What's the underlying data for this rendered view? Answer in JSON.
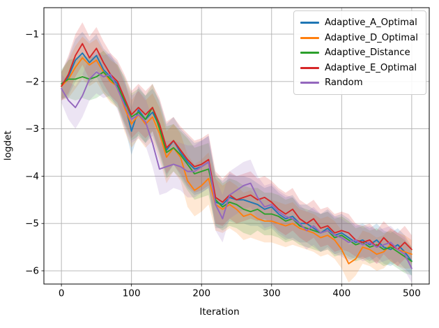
{
  "figure": {
    "background": "#ffffff"
  },
  "chart_data": {
    "type": "line",
    "title": "",
    "xlabel": "Iteration",
    "ylabel": "logdet",
    "grid": true,
    "legend_position": "upper right",
    "xlim": [
      -25,
      525
    ],
    "ylim": [
      -6.28,
      -0.44
    ],
    "xticks": [
      0,
      100,
      200,
      300,
      400,
      500
    ],
    "xtick_labels": [
      "0",
      "100",
      "200",
      "300",
      "400",
      "500"
    ],
    "yticks": [
      -1,
      -2,
      -3,
      -4,
      -5,
      -6
    ],
    "ytick_labels": [
      "−1",
      "−2",
      "−3",
      "−4",
      "−5",
      "−6"
    ],
    "band_alpha": 0.18,
    "x": [
      0,
      10,
      20,
      30,
      40,
      50,
      60,
      70,
      80,
      90,
      100,
      110,
      120,
      130,
      140,
      150,
      160,
      170,
      180,
      190,
      200,
      210,
      220,
      230,
      240,
      250,
      260,
      270,
      280,
      290,
      300,
      310,
      320,
      330,
      340,
      350,
      360,
      370,
      380,
      390,
      400,
      410,
      420,
      430,
      440,
      450,
      460,
      470,
      480,
      490,
      500
    ],
    "band_halfwidth": [
      0.3,
      0.4,
      0.45,
      0.45,
      0.45,
      0.45,
      0.45,
      0.45,
      0.45,
      0.5,
      0.5,
      0.5,
      0.5,
      0.5,
      0.55,
      0.55,
      0.5,
      0.5,
      0.55,
      0.55,
      0.55,
      0.55,
      0.55,
      0.5,
      0.5,
      0.5,
      0.5,
      0.5,
      0.45,
      0.45,
      0.45,
      0.45,
      0.45,
      0.45,
      0.4,
      0.4,
      0.4,
      0.4,
      0.4,
      0.4,
      0.4,
      0.4,
      0.35,
      0.35,
      0.35,
      0.35,
      0.35,
      0.35,
      0.35,
      0.35,
      0.3
    ],
    "series": [
      {
        "name": "Adaptive_A_Optimal",
        "color": "#1f77b4",
        "values": [
          -2.1,
          -1.9,
          -1.55,
          -1.4,
          -1.6,
          -1.45,
          -1.75,
          -1.9,
          -2.05,
          -2.45,
          -3.05,
          -2.6,
          -2.8,
          -2.65,
          -2.95,
          -3.45,
          -3.25,
          -3.5,
          -3.7,
          -3.85,
          -3.8,
          -3.7,
          -4.55,
          -4.6,
          -4.45,
          -4.5,
          -4.5,
          -4.55,
          -4.6,
          -4.7,
          -4.65,
          -4.8,
          -4.9,
          -4.85,
          -5.0,
          -5.0,
          -5.1,
          -5.2,
          -5.1,
          -5.25,
          -5.2,
          -5.3,
          -5.4,
          -5.35,
          -5.45,
          -5.35,
          -5.5,
          -5.55,
          -5.45,
          -5.6,
          -5.8
        ]
      },
      {
        "name": "Adaptive_D_Optimal",
        "color": "#ff7f0e",
        "values": [
          -2.1,
          -1.95,
          -1.7,
          -1.5,
          -1.65,
          -1.55,
          -1.8,
          -2.0,
          -2.1,
          -2.55,
          -2.9,
          -2.7,
          -2.9,
          -2.75,
          -3.1,
          -3.6,
          -3.4,
          -3.6,
          -4.1,
          -4.3,
          -4.2,
          -4.05,
          -4.6,
          -4.7,
          -4.6,
          -4.7,
          -4.85,
          -4.8,
          -4.9,
          -4.95,
          -4.95,
          -5.0,
          -5.05,
          -5.0,
          -5.1,
          -5.15,
          -5.2,
          -5.3,
          -5.25,
          -5.35,
          -5.55,
          -5.85,
          -5.75,
          -5.5,
          -5.55,
          -5.65,
          -5.6,
          -5.45,
          -5.55,
          -5.6,
          -5.65
        ]
      },
      {
        "name": "Adaptive_Distance",
        "color": "#2ca02c",
        "values": [
          -2.05,
          -1.95,
          -1.95,
          -1.9,
          -1.95,
          -1.9,
          -1.8,
          -1.95,
          -2.1,
          -2.4,
          -2.75,
          -2.65,
          -2.8,
          -2.55,
          -3.0,
          -3.5,
          -3.4,
          -3.55,
          -3.75,
          -3.95,
          -3.9,
          -3.85,
          -4.5,
          -4.65,
          -4.55,
          -4.6,
          -4.7,
          -4.75,
          -4.7,
          -4.8,
          -4.8,
          -4.85,
          -4.95,
          -4.9,
          -5.05,
          -5.1,
          -5.15,
          -5.2,
          -5.15,
          -5.3,
          -5.25,
          -5.35,
          -5.45,
          -5.4,
          -5.5,
          -5.45,
          -5.55,
          -5.5,
          -5.6,
          -5.7,
          -5.8
        ]
      },
      {
        "name": "Adaptive_E_Optimal",
        "color": "#d62728",
        "values": [
          -2.1,
          -1.85,
          -1.45,
          -1.2,
          -1.5,
          -1.3,
          -1.6,
          -1.85,
          -2.0,
          -2.35,
          -2.7,
          -2.55,
          -2.7,
          -2.55,
          -2.9,
          -3.4,
          -3.25,
          -3.45,
          -3.65,
          -3.8,
          -3.75,
          -3.65,
          -4.45,
          -4.55,
          -4.4,
          -4.5,
          -4.45,
          -4.4,
          -4.5,
          -4.45,
          -4.55,
          -4.7,
          -4.8,
          -4.7,
          -4.9,
          -5.0,
          -4.9,
          -5.1,
          -5.05,
          -5.2,
          -5.15,
          -5.2,
          -5.35,
          -5.4,
          -5.35,
          -5.5,
          -5.3,
          -5.45,
          -5.55,
          -5.4,
          -5.55
        ]
      },
      {
        "name": "Random",
        "color": "#9467bd",
        "values": [
          -2.15,
          -2.4,
          -2.55,
          -2.3,
          -1.95,
          -1.8,
          -1.9,
          -1.85,
          -2.15,
          -2.5,
          -2.8,
          -2.7,
          -2.85,
          -3.3,
          -3.85,
          -3.8,
          -3.75,
          -3.8,
          -3.9,
          -3.9,
          -3.8,
          -3.7,
          -4.6,
          -4.9,
          -4.4,
          -4.3,
          -4.2,
          -4.15,
          -4.45,
          -4.65,
          -4.6,
          -4.75,
          -4.85,
          -4.9,
          -5.0,
          -5.15,
          -5.05,
          -5.2,
          -5.15,
          -5.25,
          -5.3,
          -5.4,
          -5.35,
          -5.45,
          -5.4,
          -5.5,
          -5.45,
          -5.4,
          -5.55,
          -5.65,
          -5.95
        ]
      }
    ],
    "style": {
      "grid_color": "#b0b0b0",
      "spine_color": "#000000",
      "tick_label_color": "#000000"
    }
  }
}
